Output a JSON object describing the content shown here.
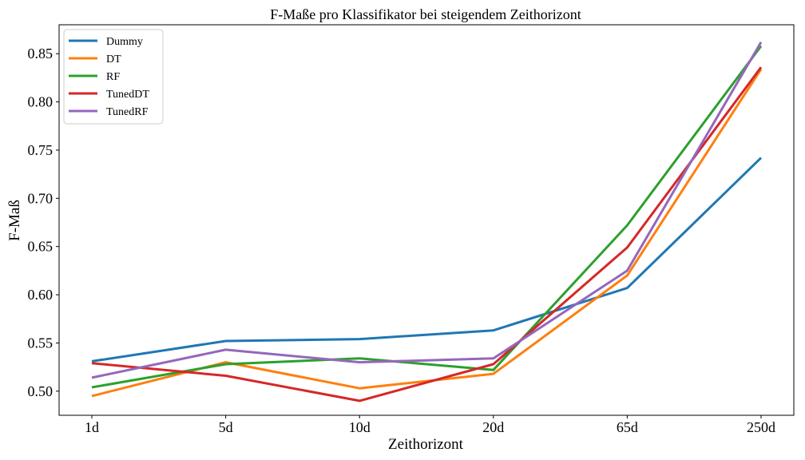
{
  "chart_data": {
    "type": "line",
    "title": "F-Maße pro Klassifikator bei steigendem Zeithorizont",
    "xlabel": "Zeithorizont",
    "ylabel": "F-Maß",
    "categories": [
      "1d",
      "5d",
      "10d",
      "20d",
      "65d",
      "250d"
    ],
    "ylim": [
      0.475,
      0.88
    ],
    "yticks": [
      "0.50",
      "0.55",
      "0.60",
      "0.65",
      "0.70",
      "0.75",
      "0.80",
      "0.85"
    ],
    "grid": false,
    "legend_position": "top-left",
    "series": [
      {
        "name": "Dummy",
        "color": "#1f77b4",
        "values": [
          0.531,
          0.552,
          0.554,
          0.563,
          0.607,
          0.742
        ]
      },
      {
        "name": "DT",
        "color": "#ff7f0e",
        "values": [
          0.495,
          0.53,
          0.503,
          0.518,
          0.62,
          0.834
        ]
      },
      {
        "name": "RF",
        "color": "#2ca02c",
        "values": [
          0.504,
          0.528,
          0.534,
          0.522,
          0.672,
          0.858
        ]
      },
      {
        "name": "TunedDT",
        "color": "#d62728",
        "values": [
          0.529,
          0.516,
          0.49,
          0.528,
          0.649,
          0.836
        ]
      },
      {
        "name": "TunedRF",
        "color": "#9467bd",
        "values": [
          0.514,
          0.543,
          0.53,
          0.534,
          0.625,
          0.862
        ]
      }
    ]
  }
}
